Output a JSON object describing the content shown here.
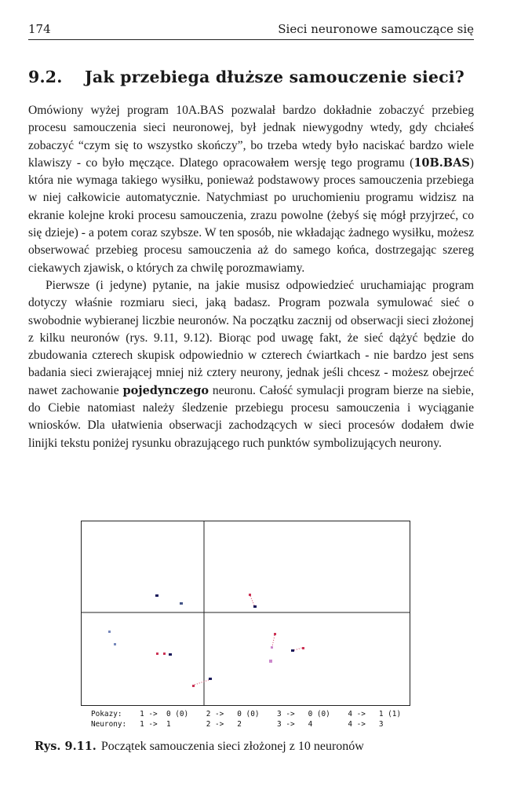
{
  "header": {
    "page_number": "174",
    "running_title": "Sieci neuronowe samouczące się"
  },
  "section": {
    "number": "9.2.",
    "title": "Jak przebiega dłuższe samouczenie sieci?"
  },
  "paragraph1": {
    "t1": "Omówiony wyżej program 10A.BAS pozwalał bardzo dokładnie zobaczyć przebieg procesu samouczenia sieci neuronowej, był jednak niewygodny wtedy, gdy chciałeś zobaczyć “czym się to wszystko skończy”, bo trzeba wtedy było naciskać bardzo wiele klawiszy - co było męczące. Dlatego opracowałem wersję tego programu (",
    "bold": "10B.BAS",
    "t2": ") która nie wymaga takiego wysiłku, ponieważ podstawowy proces samouczenia przebiega w niej całkowicie automatycznie. Natychmiast po uruchomieniu programu widzisz na ekranie kolejne kroki procesu samouczenia, zrazu powolne (żebyś się mógł przyjrzeć, co się dzieje) - a potem coraz szybsze. W ten sposób, nie wkładając żadnego wysiłku, możesz obserwować przebieg procesu samouczenia aż do samego końca, dostrzegając szereg ciekawych zjawisk, o których za chwilę porozmawiamy."
  },
  "paragraph2": {
    "t1": "Pierwsze (i jedyne) pytanie, na jakie musisz odpowiedzieć uruchamiając program dotyczy właśnie rozmiaru sieci, jaką badasz. Program pozwala symulować sieć o swobodnie wybieranej liczbie neuronów. Na początku zacznij od obserwacji sieci złożonej z kilku neuronów (rys. 9.11, 9.12). Biorąc pod uwagę fakt, że sieć dążyć będzie do zbudowania czterech skupisk odpowiednio w czterech ćwiartkach - nie bardzo jest sens badania sieci zwierającej mniej niż cztery neurony, jednak jeśli chcesz - możesz obejrzeć nawet zachowanie ",
    "bold": "pojedynczego",
    "t2": " neuronu. Całość symulacji program bierze na siebie, do Ciebie natomiast należy śledzenie przebiegu procesu samouczenia i wyciąganie wniosków. Dla ułatwienia obserwacji zachodzących w sieci procesów dodałem dwie linijki tekstu poniżej rysunku obrazującego ruch punktów symbolizujących neurony."
  },
  "figure": {
    "status_line1": "Pokazy:    1 ->  0 (0)    2 ->   0 (0)    3 ->   0 (0)    4 ->   1 (1)",
    "status_line2": "Neurony:   1 ->  1        2 ->   2        3 ->   4        4 ->   3",
    "colors": {
      "frame": "#222222",
      "neuron": "#1a1a5a",
      "trail": "#cc3355",
      "highlight": "#cc88cc"
    }
  },
  "caption": {
    "label": "Rys. 9.11.",
    "text": "Początek samouczenia sieci złożonej z 10 neuronów"
  }
}
